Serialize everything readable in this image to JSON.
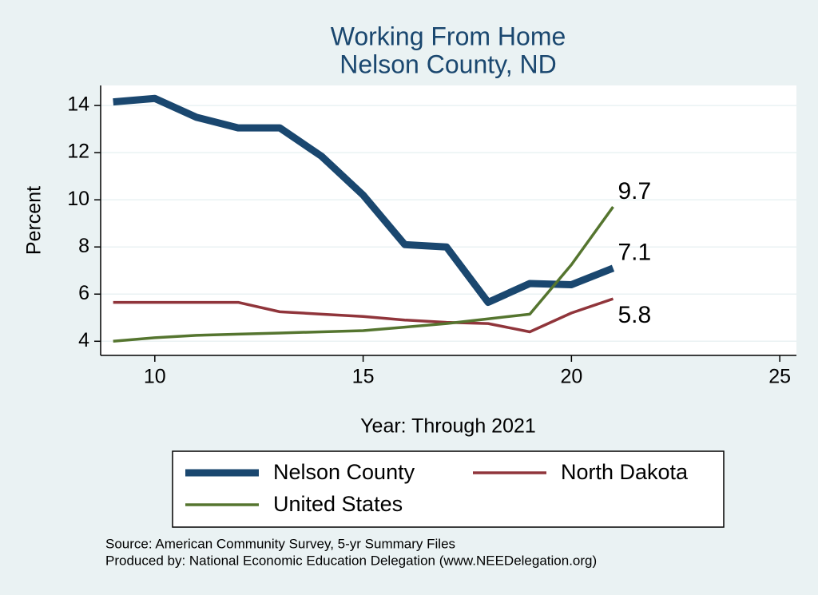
{
  "chart_data": {
    "type": "line",
    "title": [
      "Working From Home",
      "Nelson County, ND"
    ],
    "x_label": "Year: Through 2021",
    "y_label": "Percent",
    "x": [
      9,
      10,
      11,
      12,
      13,
      14,
      15,
      16,
      17,
      18,
      19,
      20,
      21
    ],
    "series": [
      {
        "name": "Nelson County",
        "color": "#1a476f",
        "width": 9,
        "values": [
          14.15,
          14.3,
          13.5,
          13.05,
          13.05,
          11.85,
          10.2,
          8.1,
          8.0,
          5.65,
          6.45,
          6.4,
          7.1
        ]
      },
      {
        "name": "North Dakota",
        "color": "#90353b",
        "width": 3.5,
        "values": [
          5.65,
          5.65,
          5.65,
          5.65,
          5.25,
          5.15,
          5.05,
          4.9,
          4.8,
          4.75,
          4.4,
          5.2,
          5.8
        ]
      },
      {
        "name": "United States",
        "color": "#55752f",
        "width": 3.5,
        "values": [
          4.0,
          4.15,
          4.25,
          4.3,
          4.35,
          4.4,
          4.45,
          4.6,
          4.75,
          4.95,
          5.15,
          7.25,
          9.7
        ]
      }
    ],
    "xlim": [
      8.7,
      25.4
    ],
    "ylim": [
      3.4,
      14.85
    ],
    "xticks": [
      10,
      15,
      20,
      25
    ],
    "yticks": [
      4,
      6,
      8,
      10,
      12,
      14
    ],
    "grid": true,
    "notes": [
      "Source: American Community Survey, 5-yr Summary Files",
      "Produced by: National Economic Education Delegation (www.NEEDelegation.org)"
    ]
  }
}
